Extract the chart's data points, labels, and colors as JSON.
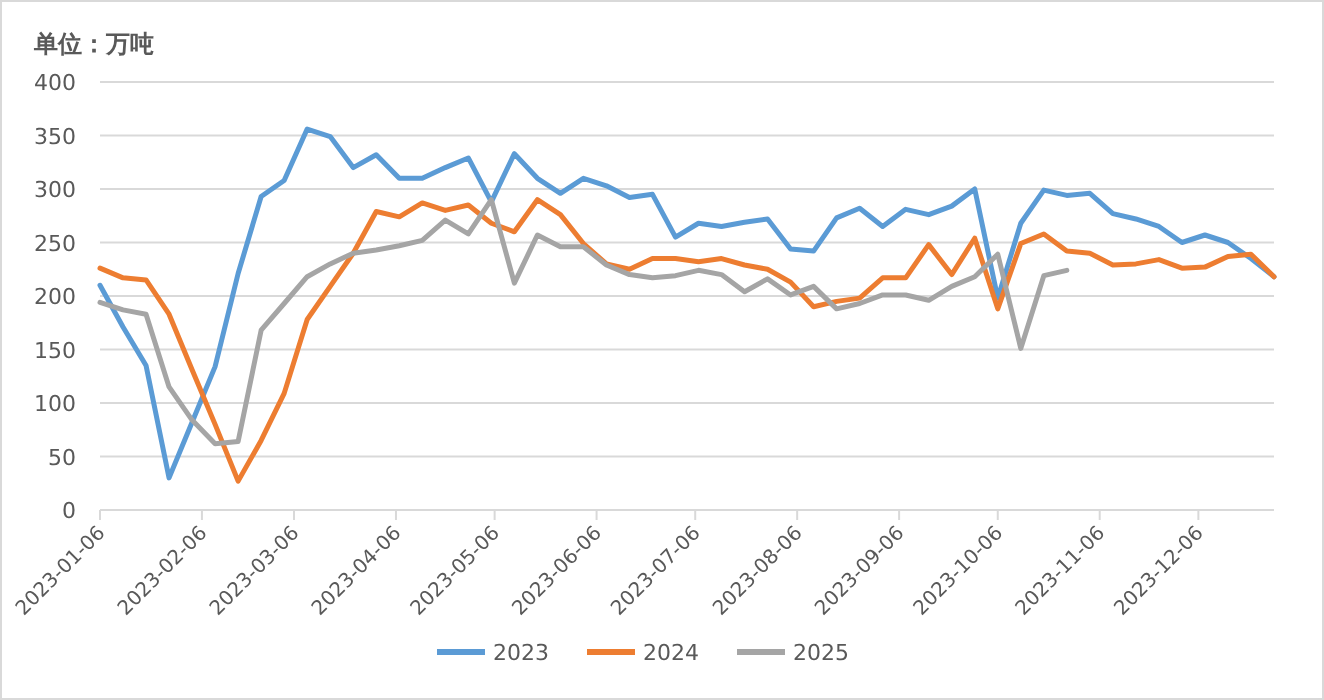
{
  "chart_data": {
    "type": "line",
    "ylabel": "单位：万吨",
    "x": [
      "2023-01-06",
      "2023-01-13",
      "2023-01-20",
      "2023-01-27",
      "2023-02-03",
      "2023-02-10",
      "2023-02-17",
      "2023-02-24",
      "2023-03-03",
      "2023-03-10",
      "2023-03-17",
      "2023-03-24",
      "2023-03-31",
      "2023-04-07",
      "2023-04-14",
      "2023-04-21",
      "2023-04-28",
      "2023-05-05",
      "2023-05-12",
      "2023-05-19",
      "2023-05-26",
      "2023-06-02",
      "2023-06-09",
      "2023-06-16",
      "2023-06-23",
      "2023-06-30",
      "2023-07-07",
      "2023-07-14",
      "2023-07-21",
      "2023-07-28",
      "2023-08-04",
      "2023-08-11",
      "2023-08-18",
      "2023-08-25",
      "2023-09-01",
      "2023-09-08",
      "2023-09-15",
      "2023-09-22",
      "2023-09-29",
      "2023-10-06",
      "2023-10-13",
      "2023-10-20",
      "2023-10-27",
      "2023-11-03",
      "2023-11-10",
      "2023-11-17",
      "2023-11-24",
      "2023-12-01",
      "2023-12-08",
      "2023-12-15",
      "2023-12-22",
      "2023-12-29"
    ],
    "series": [
      {
        "name": "2023",
        "color": "#5b9bd5",
        "values": [
          210,
          171,
          135,
          30,
          82,
          134,
          221,
          293,
          308,
          356,
          349,
          320,
          332,
          310,
          310,
          320,
          329,
          288,
          333,
          310,
          296,
          310,
          303,
          292,
          295,
          255,
          268,
          265,
          269,
          272,
          244,
          242,
          273,
          282,
          265,
          281,
          276,
          284,
          300,
          198,
          268,
          299,
          294,
          296,
          277,
          272,
          265,
          250,
          257,
          250,
          235,
          218
        ]
      },
      {
        "name": "2024",
        "color": "#ed7d31",
        "values": [
          226,
          217,
          215,
          183,
          131,
          80,
          27,
          65,
          109,
          178,
          209,
          240,
          279,
          274,
          287,
          280,
          285,
          268,
          260,
          290,
          276,
          249,
          230,
          225,
          235,
          235,
          232,
          235,
          229,
          225,
          213,
          190,
          195,
          198,
          217,
          217,
          248,
          220,
          254,
          188,
          249,
          258,
          242,
          240,
          229,
          230,
          234,
          226,
          227,
          237,
          239,
          218
        ]
      },
      {
        "name": "2025",
        "color": "#a5a5a5",
        "values": [
          194,
          187,
          183,
          115,
          84,
          62,
          64,
          168,
          193,
          218,
          230,
          240,
          243,
          247,
          252,
          271,
          258,
          290,
          212,
          257,
          246,
          246,
          229,
          220,
          217,
          219,
          224,
          220,
          204,
          216,
          201,
          209,
          188,
          193,
          201,
          201,
          196,
          209,
          218,
          239,
          151,
          219,
          224,
          null,
          null,
          null,
          null,
          null,
          null,
          null,
          null,
          null
        ]
      }
    ],
    "xlim": [
      "2023-01-06",
      "2023-12-29"
    ],
    "xticks": [
      "2023-01-06",
      "2023-02-06",
      "2023-03-06",
      "2023-04-06",
      "2023-05-06",
      "2023-06-06",
      "2023-07-06",
      "2023-08-06",
      "2023-09-06",
      "2023-10-06",
      "2023-11-06",
      "2023-12-06"
    ],
    "ylim": [
      0,
      400
    ],
    "yticks": [
      0,
      50,
      100,
      150,
      200,
      250,
      300,
      350,
      400
    ],
    "grid": "y",
    "legend": "bottom"
  }
}
